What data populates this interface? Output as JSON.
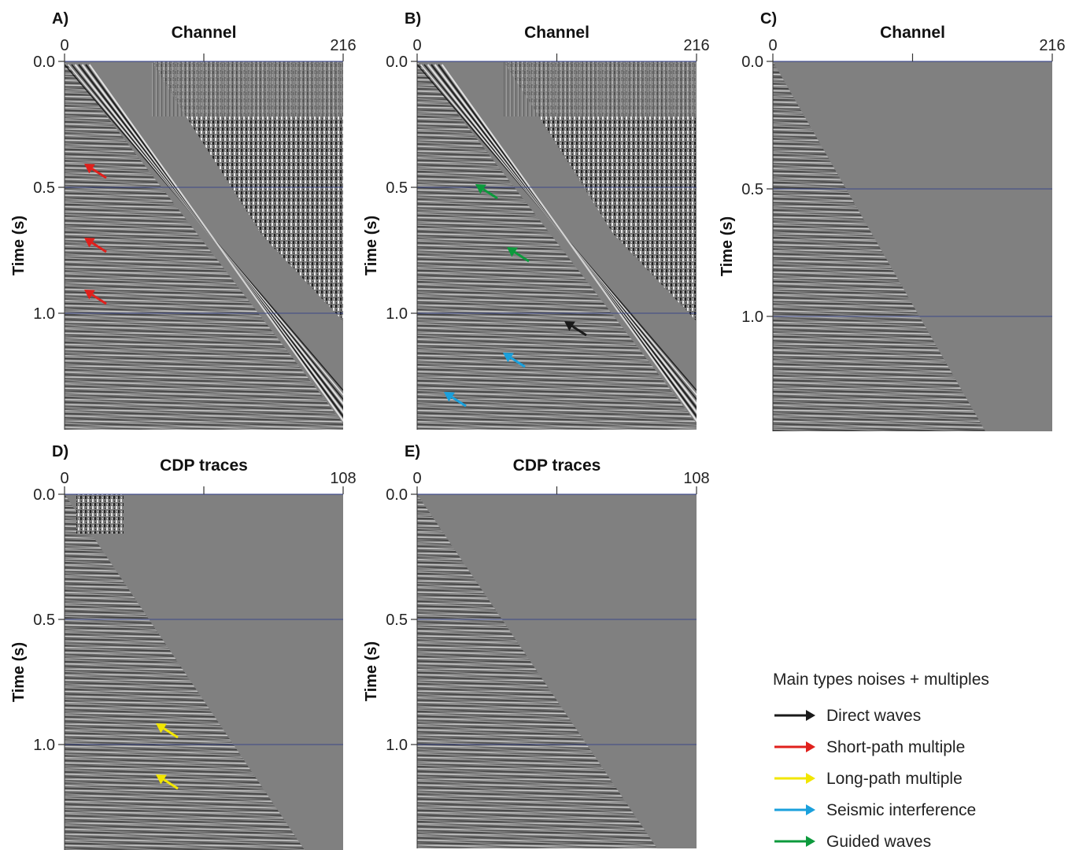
{
  "panels": [
    {
      "id": "A",
      "label": "A)",
      "axis_title": "Channel",
      "x_min": "0",
      "x_max": "216",
      "y_label": "Time (s)",
      "y_ticks": [
        "0.0",
        "0.5",
        "1.0"
      ],
      "type": "raw"
    },
    {
      "id": "B",
      "label": "B)",
      "axis_title": "Channel",
      "x_min": "0",
      "x_max": "216",
      "y_label": "Time (s)",
      "y_ticks": [
        "0.0",
        "0.5",
        "1.0"
      ],
      "type": "raw"
    },
    {
      "id": "C",
      "label": "C)",
      "axis_title": "Channel",
      "x_min": "0",
      "x_max": "216",
      "y_label": "Time (s)",
      "y_ticks": [
        "0.0",
        "0.5",
        "1.0"
      ],
      "type": "muted"
    },
    {
      "id": "D",
      "label": "D)",
      "axis_title": "CDP traces",
      "x_min": "0",
      "x_max": "108",
      "y_label": "Time (s)",
      "y_ticks": [
        "0.0",
        "0.5",
        "1.0"
      ],
      "type": "cdp"
    },
    {
      "id": "E",
      "label": "E)",
      "axis_title": "CDP traces",
      "x_min": "0",
      "x_max": "108",
      "y_label": "Time (s)",
      "y_ticks": [
        "0.0",
        "0.5",
        "1.0"
      ],
      "type": "cdp"
    }
  ],
  "legend": {
    "title": "Main types noises + multiples",
    "items": [
      {
        "label": "Direct waves",
        "color": "#1a1a1a",
        "kind": "direct"
      },
      {
        "label": "Short-path multiple",
        "color": "#e0201c",
        "kind": "short"
      },
      {
        "label": "Long-path multiple",
        "color": "#f2e600",
        "kind": "long"
      },
      {
        "label": "Seismic interference",
        "color": "#1aa0dc",
        "kind": "interference"
      },
      {
        "label": "Guided waves",
        "color": "#0c9a3c",
        "kind": "guided"
      }
    ]
  },
  "annotations": [
    {
      "panel": "A",
      "kind": "short",
      "count": 3
    },
    {
      "panel": "B",
      "kind": "guided",
      "count": 2
    },
    {
      "panel": "B",
      "kind": "direct",
      "count": 1
    },
    {
      "panel": "B",
      "kind": "interference",
      "count": 2
    },
    {
      "panel": "D",
      "kind": "long",
      "count": 2
    }
  ]
}
